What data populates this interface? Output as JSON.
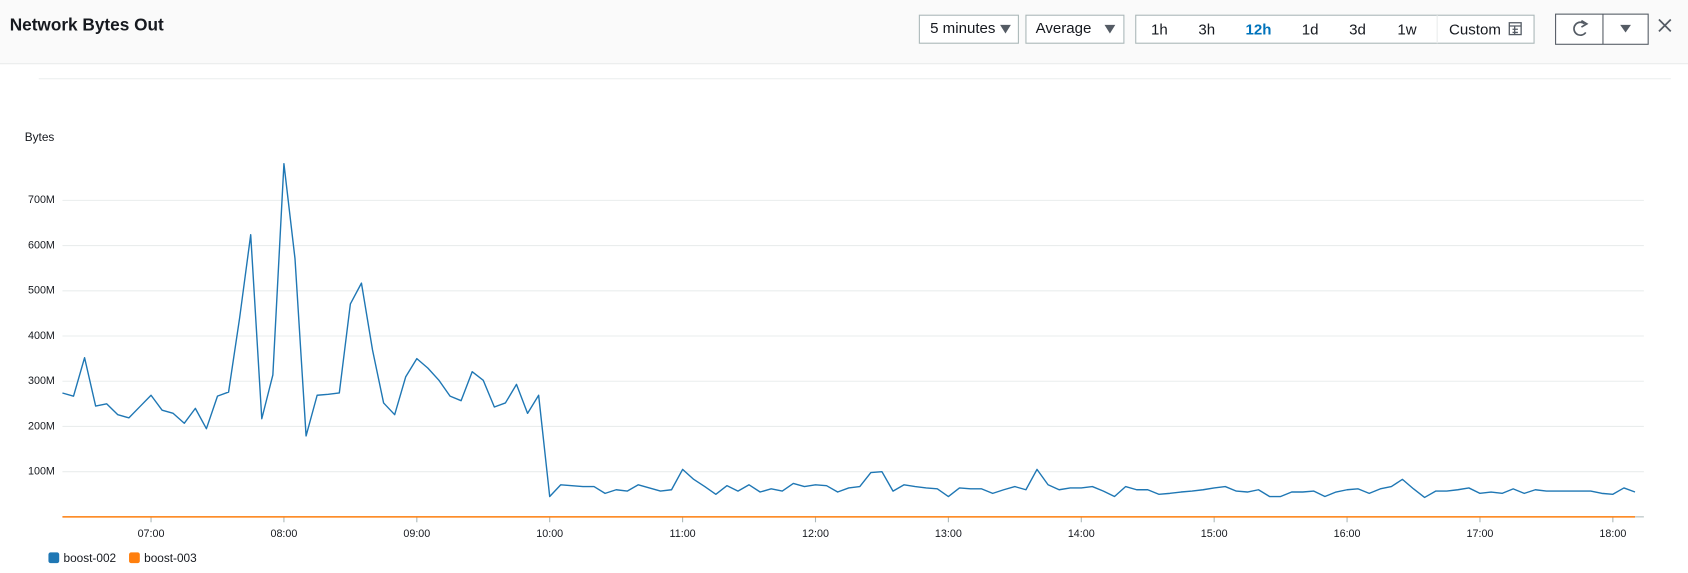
{
  "header": {
    "title": "Network Bytes Out",
    "period": "5 minutes",
    "statistic": "Average",
    "ranges": [
      "1h",
      "3h",
      "12h",
      "1d",
      "3d",
      "1w",
      "Custom"
    ],
    "selected_range": "12h"
  },
  "chart_data": {
    "type": "line",
    "y_label": "Bytes",
    "x": [
      "06:20",
      "06:25",
      "06:30",
      "06:35",
      "06:40",
      "06:45",
      "06:50",
      "06:55",
      "07:00",
      "07:05",
      "07:10",
      "07:15",
      "07:20",
      "07:25",
      "07:30",
      "07:35",
      "07:40",
      "07:45",
      "07:50",
      "07:55",
      "08:00",
      "08:05",
      "08:10",
      "08:15",
      "08:20",
      "08:25",
      "08:30",
      "08:35",
      "08:40",
      "08:45",
      "08:50",
      "08:55",
      "09:00",
      "09:05",
      "09:10",
      "09:15",
      "09:20",
      "09:25",
      "09:30",
      "09:35",
      "09:40",
      "09:45",
      "09:50",
      "09:55",
      "10:00",
      "10:05",
      "10:10",
      "10:15",
      "10:20",
      "10:25",
      "10:30",
      "10:35",
      "10:40",
      "10:45",
      "10:50",
      "10:55",
      "11:00",
      "11:05",
      "11:10",
      "11:15",
      "11:20",
      "11:25",
      "11:30",
      "11:35",
      "11:40",
      "11:45",
      "11:50",
      "11:55",
      "12:00",
      "12:05",
      "12:10",
      "12:15",
      "12:20",
      "12:25",
      "12:30",
      "12:35",
      "12:40",
      "12:45",
      "12:50",
      "12:55",
      "13:00",
      "13:05",
      "13:10",
      "13:15",
      "13:20",
      "13:25",
      "13:30",
      "13:35",
      "13:40",
      "13:45",
      "13:50",
      "13:55",
      "14:00",
      "14:05",
      "14:10",
      "14:15",
      "14:20",
      "14:25",
      "14:30",
      "14:35",
      "14:40",
      "14:45",
      "14:50",
      "14:55",
      "15:00",
      "15:05",
      "15:10",
      "15:15",
      "15:20",
      "15:25",
      "15:30",
      "15:35",
      "15:40",
      "15:45",
      "15:50",
      "15:55",
      "16:00",
      "16:05",
      "16:10",
      "16:15",
      "16:20",
      "16:25",
      "16:30",
      "16:35",
      "16:40",
      "16:45",
      "16:50",
      "16:55",
      "17:00",
      "17:05",
      "17:10",
      "17:15",
      "17:20",
      "17:25",
      "17:30",
      "17:35",
      "17:40",
      "17:45",
      "17:50",
      "17:55",
      "18:00",
      "18:05",
      "18:10"
    ],
    "xlim": [
      "06:20",
      "18:14"
    ],
    "xticks": [
      "07:00",
      "08:00",
      "09:00",
      "10:00",
      "11:00",
      "12:00",
      "13:00",
      "14:00",
      "15:00",
      "16:00",
      "17:00",
      "18:00"
    ],
    "ylim": [
      0,
      800000000
    ],
    "yticks": [
      {
        "value": 100000000,
        "label": "100M"
      },
      {
        "value": 200000000,
        "label": "200M"
      },
      {
        "value": 300000000,
        "label": "300M"
      },
      {
        "value": 400000000,
        "label": "400M"
      },
      {
        "value": 500000000,
        "label": "500M"
      },
      {
        "value": 600000000,
        "label": "600M"
      },
      {
        "value": 700000000,
        "label": "700M"
      }
    ],
    "grid": true,
    "series": [
      {
        "name": "boost-002",
        "color": "#1f77b4",
        "values": [
          274000000,
          267000000,
          352000000,
          245000000,
          250000000,
          226000000,
          219000000,
          244000000,
          269000000,
          236000000,
          229000000,
          207000000,
          240000000,
          195000000,
          267000000,
          276000000,
          440000000,
          624000000,
          217000000,
          314000000,
          781000000,
          571000000,
          179000000,
          269000000,
          271000000,
          274000000,
          471000000,
          517000000,
          369000000,
          252000000,
          226000000,
          310000000,
          350000000,
          329000000,
          302000000,
          267000000,
          257000000,
          321000000,
          302000000,
          243000000,
          252000000,
          293000000,
          229000000,
          269000000,
          45000000,
          71000000,
          69000000,
          67000000,
          67000000,
          52000000,
          60000000,
          57000000,
          71000000,
          64000000,
          57000000,
          60000000,
          105000000,
          83000000,
          67000000,
          50000000,
          69000000,
          57000000,
          71000000,
          55000000,
          62000000,
          57000000,
          74000000,
          67000000,
          71000000,
          69000000,
          55000000,
          64000000,
          67000000,
          98000000,
          100000000,
          57000000,
          71000000,
          67000000,
          64000000,
          62000000,
          45000000,
          64000000,
          62000000,
          62000000,
          52000000,
          60000000,
          67000000,
          60000000,
          105000000,
          71000000,
          60000000,
          64000000,
          64000000,
          67000000,
          57000000,
          45000000,
          67000000,
          60000000,
          60000000,
          50000000,
          52000000,
          55000000,
          57000000,
          60000000,
          64000000,
          67000000,
          57000000,
          55000000,
          60000000,
          45000000,
          45000000,
          55000000,
          55000000,
          57000000,
          45000000,
          55000000,
          60000000,
          62000000,
          52000000,
          62000000,
          67000000,
          83000000,
          62000000,
          43000000,
          57000000,
          57000000,
          60000000,
          64000000,
          52000000,
          55000000,
          52000000,
          62000000,
          52000000,
          60000000,
          57000000,
          57000000,
          57000000,
          57000000,
          57000000,
          52000000,
          50000000,
          64000000,
          55000000
        ]
      },
      {
        "name": "boost-003",
        "color": "#ff7f0e",
        "values": [
          0,
          0,
          0,
          0,
          0,
          0,
          0,
          0,
          0,
          0,
          0,
          0,
          0,
          0,
          0,
          0,
          0,
          0,
          0,
          0,
          0,
          0,
          0,
          0,
          0,
          0,
          0,
          0,
          0,
          0,
          0,
          0,
          0,
          0,
          0,
          0,
          0,
          0,
          0,
          0,
          0,
          0,
          0,
          0,
          0,
          0,
          0,
          0,
          0,
          0,
          0,
          0,
          0,
          0,
          0,
          0,
          0,
          0,
          0,
          0,
          0,
          0,
          0,
          0,
          0,
          0,
          0,
          0,
          0,
          0,
          0,
          0,
          0,
          0,
          0,
          0,
          0,
          0,
          0,
          0,
          0,
          0,
          0,
          0,
          0,
          0,
          0,
          0,
          0,
          0,
          0,
          0,
          0,
          0,
          0,
          0,
          0,
          0,
          0,
          0,
          0,
          0,
          0,
          0,
          0,
          0,
          0,
          0,
          0,
          0,
          0,
          0,
          0,
          0,
          0,
          0,
          0,
          0,
          0,
          0,
          0,
          0,
          0,
          0,
          0,
          0,
          0,
          0,
          0,
          0,
          0,
          0,
          0,
          0,
          0,
          0,
          0,
          0,
          0,
          0,
          0,
          0,
          0
        ]
      }
    ]
  }
}
